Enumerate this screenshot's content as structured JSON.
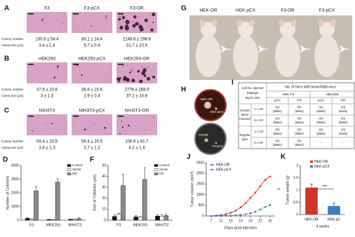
{
  "colony_row_labels": {
    "number": "Colony number",
    "size": "Colony size (μm)"
  },
  "colony_assay": [
    {
      "label": "A",
      "images": [
        "F3",
        "F3-pCX",
        "F3-OR"
      ],
      "colony_number": [
        "130.6 ± 54.4",
        "83.1 ± 24.4",
        "2148.8 ± 296.6"
      ],
      "colony_size": [
        "3.4 ± 1.4",
        "5.7 ± 0.4",
        "31.7 ± 10.5"
      ]
    },
    {
      "label": "B",
      "images": [
        "HEK293",
        "HEK293-pCX",
        "HEK293-OR"
      ],
      "colony_number": [
        "47.5 ± 20.6",
        "35.6 ± 15.6",
        "2778 ± 268.9"
      ],
      "colony_size": [
        "3 ± 1.3",
        "2.9 ± 0.4",
        "37.2 ± 10.8"
      ]
    },
    {
      "label": "C",
      "images": [
        "NIH3T3",
        "NIH3T3-pCX",
        "NIH3T3-OR"
      ],
      "colony_number": [
        "59.4 ± 20.5",
        "59.4 ± 20.5",
        "106.9 ± 61.7"
      ],
      "colony_size": [
        "3.8 ± 1.3",
        "3.7 ± 1.2",
        "4.2 ± 1.6"
      ]
    }
  ],
  "bar_charts": [
    {
      "label": "D",
      "type": "bar",
      "ylabel": "Number of Colonies",
      "categories": [
        "F3",
        "HEK293",
        "NIH3T3"
      ],
      "ylim": [
        0,
        4000
      ],
      "yticks": [
        0,
        1000,
        2000,
        3000,
        4000
      ],
      "series": [
        {
          "name": "Control",
          "color": "#111111",
          "values": [
            130.6,
            47.5,
            59.4
          ],
          "errors": [
            54.4,
            20.6,
            20.5
          ]
        },
        {
          "name": "Vector",
          "color": "#ffffff",
          "values": [
            83.1,
            35.6,
            59.4
          ],
          "errors": [
            24.4,
            15.6,
            20.5
          ]
        },
        {
          "name": "OR",
          "color": "#8a8a8a",
          "values": [
            2148.8,
            2778,
            106.9
          ],
          "errors": [
            296.6,
            268.9,
            61.7
          ]
        }
      ]
    },
    {
      "label": "F",
      "type": "bar",
      "ylabel": "Size of Colonies (μm)",
      "categories": [
        "F3",
        "HEK293",
        "NIH3T3"
      ],
      "ylim": [
        0,
        50
      ],
      "yticks": [
        0,
        10,
        20,
        30,
        40,
        50
      ],
      "series": [
        {
          "name": "Control",
          "color": "#111111",
          "values": [
            3.4,
            3,
            3.8
          ],
          "errors": [
            1.4,
            1.3,
            1.3
          ]
        },
        {
          "name": "Vector",
          "color": "#ffffff",
          "values": [
            5.7,
            2.9,
            3.7
          ],
          "errors": [
            0.4,
            0.4,
            1.2
          ]
        },
        {
          "name": "OR",
          "color": "#8a8a8a",
          "values": [
            31.7,
            37.2,
            4.2
          ],
          "errors": [
            10.5,
            10.8,
            1.6
          ]
        }
      ]
    }
  ],
  "mice": {
    "label": "G",
    "names": [
      "HEK-OR",
      "HEK-pCX",
      "F3-OR",
      "F3-pCX"
    ]
  },
  "dishes": {
    "label": "H",
    "top": [
      "HEK-OR",
      "HEK-pCX"
    ],
    "bottom": [
      "F3-OR",
      "F3-pCX"
    ]
  },
  "table": {
    "label": "I",
    "header": "No. of mice with tumor/total mice",
    "row_header": [
      "Cell No. injected",
      "(Matrigel",
      "50μl/1 site)"
    ],
    "groups": [
      "HEK-F3",
      "HEK293"
    ],
    "subcols": [
      "pCX",
      "OR",
      "pCX",
      "OR"
    ],
    "row_groups": [
      {
        "name": [
          "Growth",
          "factor",
          "reduced"
        ],
        "rows": [
          {
            "cell_no": "1 x 10⁶",
            "cells": [
              [
                "0/3",
                "(8wks)"
              ],
              [
                "0/3",
                "(8wks)"
              ],
              [
                "0/3",
                "(8wks)"
              ],
              [
                "0/3",
                "(8wks)"
              ]
            ]
          },
          {
            "cell_no": "5 x 10⁶",
            "cells": [
              [
                "0/3",
                "(8wks)"
              ],
              [
                "0/3",
                "(8wks)"
              ],
              [
                "0/3",
                "(8wks)"
              ],
              [
                "0/3",
                "(8wks)"
              ]
            ]
          }
        ]
      },
      {
        "name": [
          "Regular",
          "type"
        ],
        "rows": [
          {
            "cell_no": "1 x 10⁶",
            "cells": [
              [
                "0/3",
                "(8wks)"
              ],
              [
                "0/3",
                "(8wks)"
              ],
              [
                "0/3",
                "(8wks)"
              ],
              [
                "3/3",
                "(4wks)"
              ]
            ]
          },
          {
            "cell_no": "5 x 10⁶",
            "cells": [
              [
                "0/3",
                "(8wks)"
              ],
              [
                "0/3",
                "(8wks)"
              ],
              [
                "-"
              ],
              [
                "-"
              ]
            ]
          }
        ]
      }
    ]
  },
  "line_chart": {
    "label": "J",
    "type": "line",
    "xlabel": "Days post injection",
    "ylabel": "Tumor volume (mm³)",
    "x": [
      7,
      9,
      11,
      13,
      15,
      17,
      19,
      21,
      23,
      25,
      27,
      29,
      31
    ],
    "xlim": [
      5,
      33
    ],
    "xticks": [
      7,
      11,
      15,
      19,
      23,
      27,
      31
    ],
    "ylim": [
      0,
      2500
    ],
    "yticks": [
      0,
      500,
      1000,
      1500,
      2000,
      2500
    ],
    "annotation": "**",
    "series": [
      {
        "name": "HEK-OR",
        "color": "#d0352b",
        "values": [
          0,
          20,
          40,
          80,
          150,
          250,
          400,
          600,
          850,
          1100,
          1400,
          1700,
          1850
        ]
      },
      {
        "name": "HEK-pCX",
        "color": "#3a7ec2",
        "values": [
          0,
          5,
          10,
          15,
          20,
          30,
          50,
          80,
          120,
          200,
          300,
          420,
          520
        ]
      }
    ]
  },
  "weight_chart": {
    "label": "K",
    "type": "bar",
    "ylabel": "Tumor weight (g)",
    "categories": [
      "HEK-OR",
      "HEK-pC"
    ],
    "legend": [
      "HEK-OR",
      "HEK-pCX"
    ],
    "colors": [
      "#d0352b",
      "#3a7ec2"
    ],
    "values": [
      1.1,
      0.35
    ],
    "errors": [
      0.15,
      0.12
    ],
    "ylim": [
      0,
      2
    ],
    "yticks": [
      0,
      0.5,
      1,
      1.5,
      2
    ],
    "subtitle": "4 weeks",
    "annotation": "***"
  }
}
